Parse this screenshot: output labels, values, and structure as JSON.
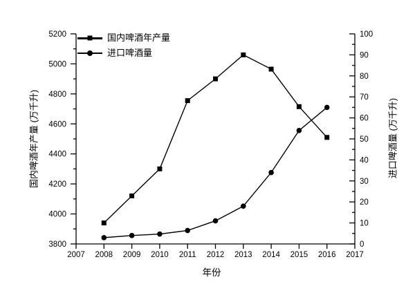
{
  "chart_data": {
    "type": "line",
    "title": "",
    "x": [
      2008,
      2009,
      2010,
      2011,
      2012,
      2013,
      2014,
      2015,
      2016
    ],
    "series": [
      {
        "name": "国内啤酒年产量",
        "axis": "left",
        "marker": "square",
        "color": "#000000",
        "values": [
          3940,
          4120,
          4300,
          4755,
          4900,
          5060,
          4965,
          4715,
          4510
        ]
      },
      {
        "name": "进口啤酒量",
        "axis": "right",
        "marker": "circle",
        "color": "#000000",
        "values": [
          3,
          4,
          4.7,
          6.4,
          11,
          18,
          34,
          54,
          65
        ]
      }
    ],
    "xlabel": "年份",
    "ylabel_left": "国内啤酒年产量 (万千升)",
    "ylabel_right": "进口啤酒量 (万千升)",
    "x_ticks": [
      2007,
      2008,
      2009,
      2010,
      2011,
      2012,
      2013,
      2014,
      2015,
      2016,
      2017
    ],
    "left_ticks": [
      3800,
      4000,
      4200,
      4400,
      4600,
      4800,
      5000,
      5200
    ],
    "right_ticks": [
      0,
      10,
      20,
      30,
      40,
      50,
      60,
      70,
      80,
      90,
      100
    ],
    "left_range": [
      3800,
      5200
    ],
    "right_range": [
      0,
      100
    ],
    "x_range": [
      2007,
      2017
    ],
    "grid": false,
    "legend_position": "top-left-inside",
    "colors": {
      "line": "#000000",
      "background": "#ffffff",
      "text": "#000000"
    }
  }
}
